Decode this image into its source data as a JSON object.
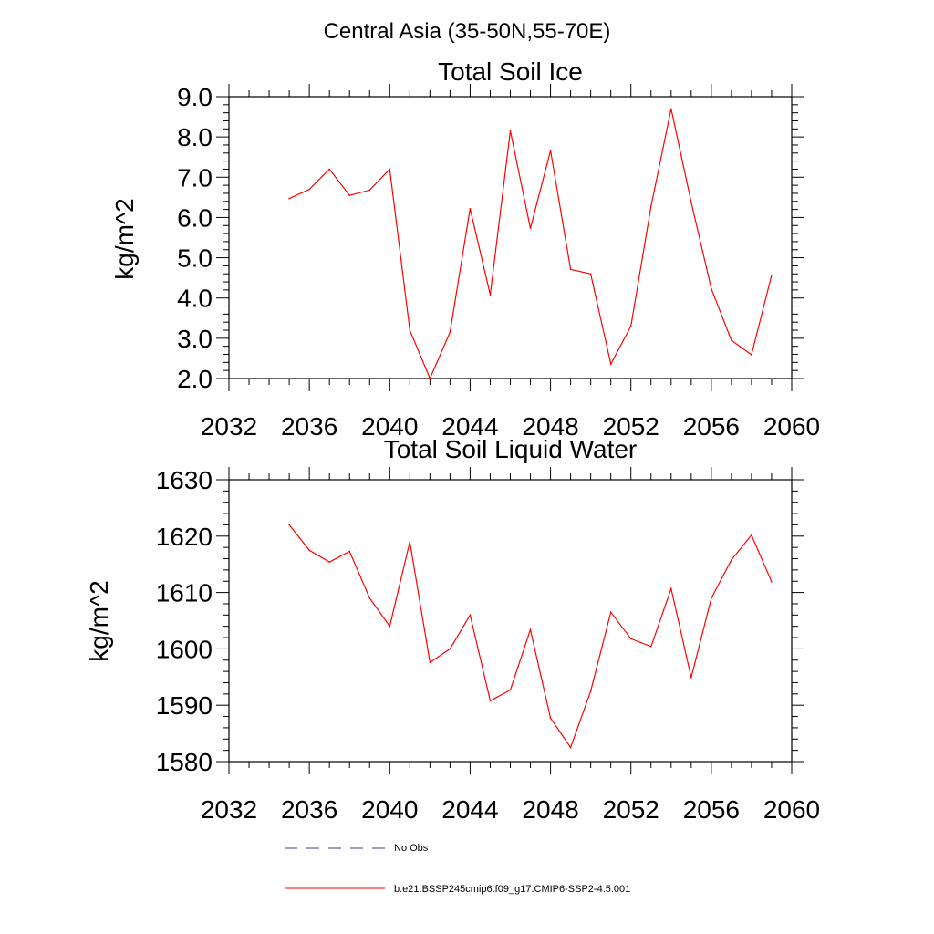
{
  "figure": {
    "main_title": "Central Asia (35-50N,55-70E)"
  },
  "colors": {
    "series": "#ff0000",
    "obs": "#3b3b8f",
    "axes": "#000000"
  },
  "chart_data": [
    {
      "type": "line",
      "title": "Total Soil Ice",
      "xlabel": "",
      "ylabel": "kg/m^2",
      "xlim": [
        2032,
        2060
      ],
      "ylim": [
        2.0,
        9.0
      ],
      "xticks": [
        2032,
        2036,
        2040,
        2044,
        2048,
        2052,
        2056,
        2060
      ],
      "xtick_labels": [
        "2032",
        "2036",
        "2040",
        "2044",
        "2048",
        "2052",
        "2056",
        "2060"
      ],
      "yticks": [
        2.0,
        3.0,
        4.0,
        5.0,
        6.0,
        7.0,
        8.0,
        9.0
      ],
      "ytick_labels": [
        "2.0",
        "3.0",
        "4.0",
        "5.0",
        "6.0",
        "7.0",
        "8.0",
        "9.0"
      ],
      "series": [
        {
          "name": "b.e21.BSSP245cmip6.f09_g17.CMIP6-SSP2-4.5.001",
          "x": [
            2035,
            2036,
            2037,
            2038,
            2039,
            2040,
            2041,
            2042,
            2043,
            2044,
            2045,
            2046,
            2047,
            2048,
            2049,
            2050,
            2051,
            2052,
            2053,
            2054,
            2055,
            2056,
            2057,
            2058,
            2059
          ],
          "y": [
            6.47,
            6.7,
            7.2,
            6.55,
            6.68,
            7.2,
            3.2,
            2.0,
            3.15,
            6.22,
            4.08,
            8.15,
            5.73,
            7.66,
            4.71,
            4.6,
            2.36,
            3.3,
            6.28,
            8.7,
            6.38,
            4.23,
            2.95,
            2.59,
            4.57
          ]
        }
      ]
    },
    {
      "type": "line",
      "title": "Total Soil Liquid Water",
      "xlabel": "",
      "ylabel": "kg/m^2",
      "xlim": [
        2032,
        2060
      ],
      "ylim": [
        1580,
        1630
      ],
      "xticks": [
        2032,
        2036,
        2040,
        2044,
        2048,
        2052,
        2056,
        2060
      ],
      "xtick_labels": [
        "2032",
        "2036",
        "2040",
        "2044",
        "2048",
        "2052",
        "2056",
        "2060"
      ],
      "yticks": [
        1580,
        1590,
        1600,
        1610,
        1620,
        1630
      ],
      "ytick_labels": [
        "1580",
        "1590",
        "1600",
        "1610",
        "1620",
        "1630"
      ],
      "series": [
        {
          "name": "b.e21.BSSP245cmip6.f09_g17.CMIP6-SSP2-4.5.001",
          "x": [
            2035,
            2036,
            2037,
            2038,
            2039,
            2040,
            2041,
            2042,
            2043,
            2044,
            2045,
            2046,
            2047,
            2048,
            2049,
            2050,
            2051,
            2052,
            2053,
            2054,
            2055,
            2056,
            2057,
            2058,
            2059
          ],
          "y": [
            1622,
            1617.5,
            1615.4,
            1617.3,
            1609,
            1604,
            1619,
            1597.6,
            1600,
            1606,
            1590.8,
            1592.7,
            1603.4,
            1587.7,
            1582.5,
            1592.5,
            1606.5,
            1601.8,
            1600.4,
            1610.7,
            1594.9,
            1609,
            1615.8,
            1620.2,
            1611.9
          ]
        }
      ]
    }
  ],
  "legend": {
    "entries": [
      {
        "label": "No Obs",
        "style": "dashed",
        "color": "#3b3b8f"
      },
      {
        "label": "b.e21.BSSP245cmip6.f09_g17.CMIP6-SSP2-4.5.001",
        "style": "solid",
        "color": "#ff0000"
      }
    ]
  }
}
